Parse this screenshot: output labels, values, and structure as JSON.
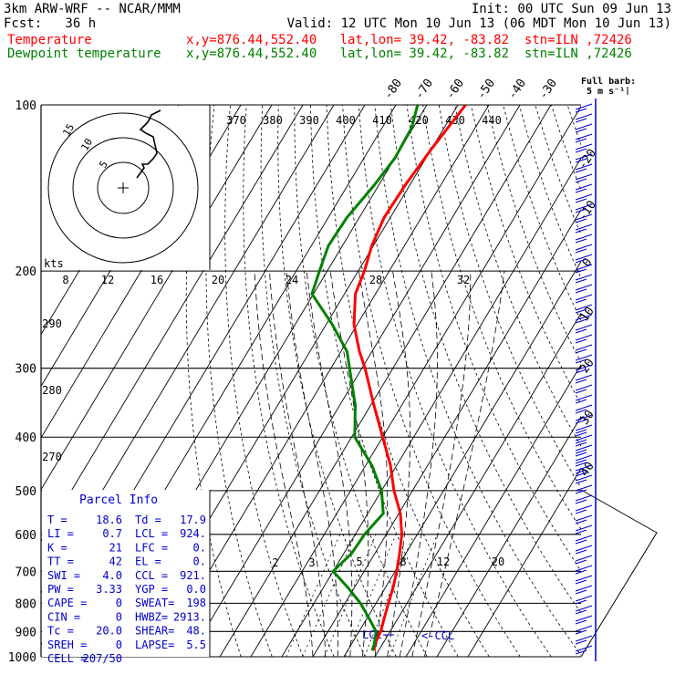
{
  "header": {
    "line1_left": "3km ARW-WRF -- NCAR/MMM",
    "line1_right": "Init: 00 UTC Sun 09 Jun 13",
    "line2_left": "Fcst:   36 h",
    "line2_right": "Valid: 12 UTC Mon 10 Jun 13 (06 MDT Mon 10 Jun 13)",
    "line3_left": "Temperature",
    "line3_right": "x,y=876.44,552.40   lat,lon= 39.42, -83.82  stn=ILN ,72426",
    "line4_left": "Dewpoint temperature",
    "line4_right": "x,y=876.44,552.40   lat,lon= 39.42, -83.82  stn=ILN ,72426"
  },
  "colors": {
    "temperature": "#ff0000",
    "dewpoint": "#008000",
    "barb": "#0000cc",
    "legend_text": "#0000cc"
  },
  "chart_data": {
    "type": "line",
    "pressure_levels": [
      "100",
      "200",
      "300",
      "400",
      "500",
      "600",
      "700",
      "800",
      "900",
      "1000"
    ],
    "isotherm_labels": [
      "-80",
      "-70",
      "-60",
      "-50",
      "-40",
      "-30",
      "-20",
      "-10",
      "0",
      "10",
      "20",
      "30",
      "40"
    ],
    "theta_labels_top": [
      "370",
      "380",
      "390",
      "400",
      "410",
      "420",
      "430",
      "440"
    ],
    "theta_labels_left": [
      "290",
      "280",
      "270"
    ],
    "mixing_ratio_labels": [
      "2",
      "3",
      "5",
      "8",
      "12",
      "20"
    ],
    "hodograph": {
      "units_label": "kts",
      "ring_labels": [
        "15",
        "10",
        "5"
      ],
      "axis_ticks": [
        "8",
        "12",
        "16",
        "20",
        "24",
        "28",
        "32"
      ]
    },
    "barb_legend": {
      "line1": "Full barb:",
      "line2": "5 m s⁻¹"
    },
    "annotations": {
      "lcl": "LCL",
      "ccl": "<-CCL"
    },
    "series": [
      {
        "name": "Temperature",
        "points": [
          [
            100,
            -57.5
          ],
          [
            120,
            -60
          ],
          [
            140,
            -61.5
          ],
          [
            160,
            -62
          ],
          [
            180,
            -60.5
          ],
          [
            200,
            -58
          ],
          [
            220,
            -56.5
          ],
          [
            250,
            -51
          ],
          [
            280,
            -44
          ],
          [
            300,
            -39
          ],
          [
            350,
            -29
          ],
          [
            400,
            -20
          ],
          [
            450,
            -12
          ],
          [
            500,
            -6
          ],
          [
            550,
            0.5
          ],
          [
            600,
            5
          ],
          [
            650,
            8
          ],
          [
            700,
            10.5
          ],
          [
            750,
            12.5
          ],
          [
            800,
            14
          ],
          [
            850,
            15.5
          ],
          [
            900,
            17
          ],
          [
            950,
            17.5
          ],
          [
            975,
            18.6
          ]
        ]
      },
      {
        "name": "Dewpoint temperature",
        "points": [
          [
            100,
            -73
          ],
          [
            110,
            -70.5
          ],
          [
            125,
            -70
          ],
          [
            140,
            -71.5
          ],
          [
            160,
            -74
          ],
          [
            180,
            -74.5
          ],
          [
            200,
            -72.5
          ],
          [
            220,
            -70.5
          ],
          [
            250,
            -58
          ],
          [
            280,
            -48
          ],
          [
            300,
            -44
          ],
          [
            350,
            -35
          ],
          [
            400,
            -29
          ],
          [
            450,
            -18
          ],
          [
            500,
            -10
          ],
          [
            550,
            -5
          ],
          [
            600,
            -7
          ],
          [
            650,
            -7.5
          ],
          [
            700,
            -10
          ],
          [
            750,
            -2
          ],
          [
            800,
            5
          ],
          [
            850,
            10.5
          ],
          [
            900,
            15.5
          ],
          [
            950,
            17.4
          ],
          [
            975,
            17.9
          ]
        ]
      }
    ],
    "parcel_info": {
      "title": "Parcel Info",
      "rows": [
        [
          "T   =",
          "18.6",
          "Td  =",
          "17.9"
        ],
        [
          "LI  =",
          "0.7",
          "LCL =",
          "924."
        ],
        [
          "K   =",
          "21",
          "LFC =",
          "0."
        ],
        [
          "TT  =",
          "42",
          "EL  =",
          "0."
        ],
        [
          "SWI =",
          "4.0",
          "CCL =",
          "921."
        ],
        [
          "PW  =",
          "3.33",
          "YGP =",
          "0.0"
        ],
        [
          "CAPE =",
          "0",
          "SWEAT=",
          "198"
        ],
        [
          "CIN  =",
          "0",
          "HWBZ=",
          "2913."
        ],
        [
          "Tc  =",
          "20.0",
          "SHEAR=",
          "48."
        ],
        [
          "SREH =",
          "0",
          "LAPSE=",
          "5.5"
        ],
        [
          "CELL =",
          "207/50",
          "",
          ""
        ]
      ]
    }
  }
}
